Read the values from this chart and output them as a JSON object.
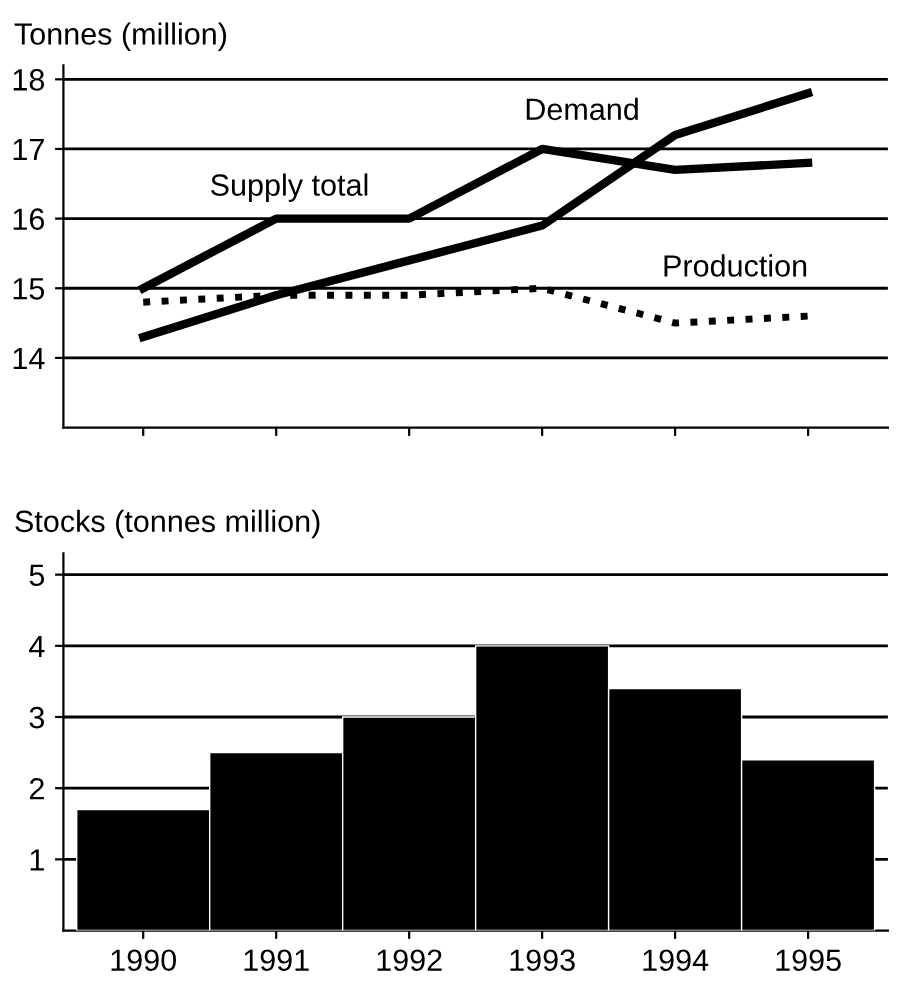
{
  "chart_data": [
    {
      "type": "line",
      "ylabel": "Tonnes (million)",
      "categories": [
        "1990",
        "1991",
        "1992",
        "1993",
        "1994",
        "1995"
      ],
      "tick_labels": "y",
      "ylim": [
        13,
        18.2
      ],
      "yticks": [
        14,
        15,
        16,
        17,
        18
      ],
      "grid": "y",
      "legend": false,
      "marker": "none",
      "series": [
        {
          "name": "Demand",
          "color": "#000000",
          "line_style": "solid",
          "values": [
            14.3,
            14.9,
            15.4,
            15.9,
            17.2,
            17.8
          ]
        },
        {
          "name": "Supply total",
          "color": "#000000",
          "line_style": "solid",
          "values": [
            15.0,
            16.0,
            16.0,
            17.0,
            16.7,
            16.8
          ]
        },
        {
          "name": "Production",
          "color": "#000000",
          "line_style": "dotted",
          "values": [
            14.8,
            14.9,
            14.9,
            15.0,
            14.5,
            14.6
          ]
        }
      ]
    },
    {
      "type": "bar",
      "ylabel": "Stocks (tonnes million)",
      "categories": [
        "1990",
        "1991",
        "1992",
        "1993",
        "1994",
        "1995"
      ],
      "ylim": [
        0,
        5.3
      ],
      "yticks": [
        1,
        2,
        3,
        4,
        5
      ],
      "grid": "y",
      "color": "#000000",
      "values": [
        1.7,
        2.5,
        3.0,
        4.0,
        3.4,
        2.4
      ]
    }
  ]
}
